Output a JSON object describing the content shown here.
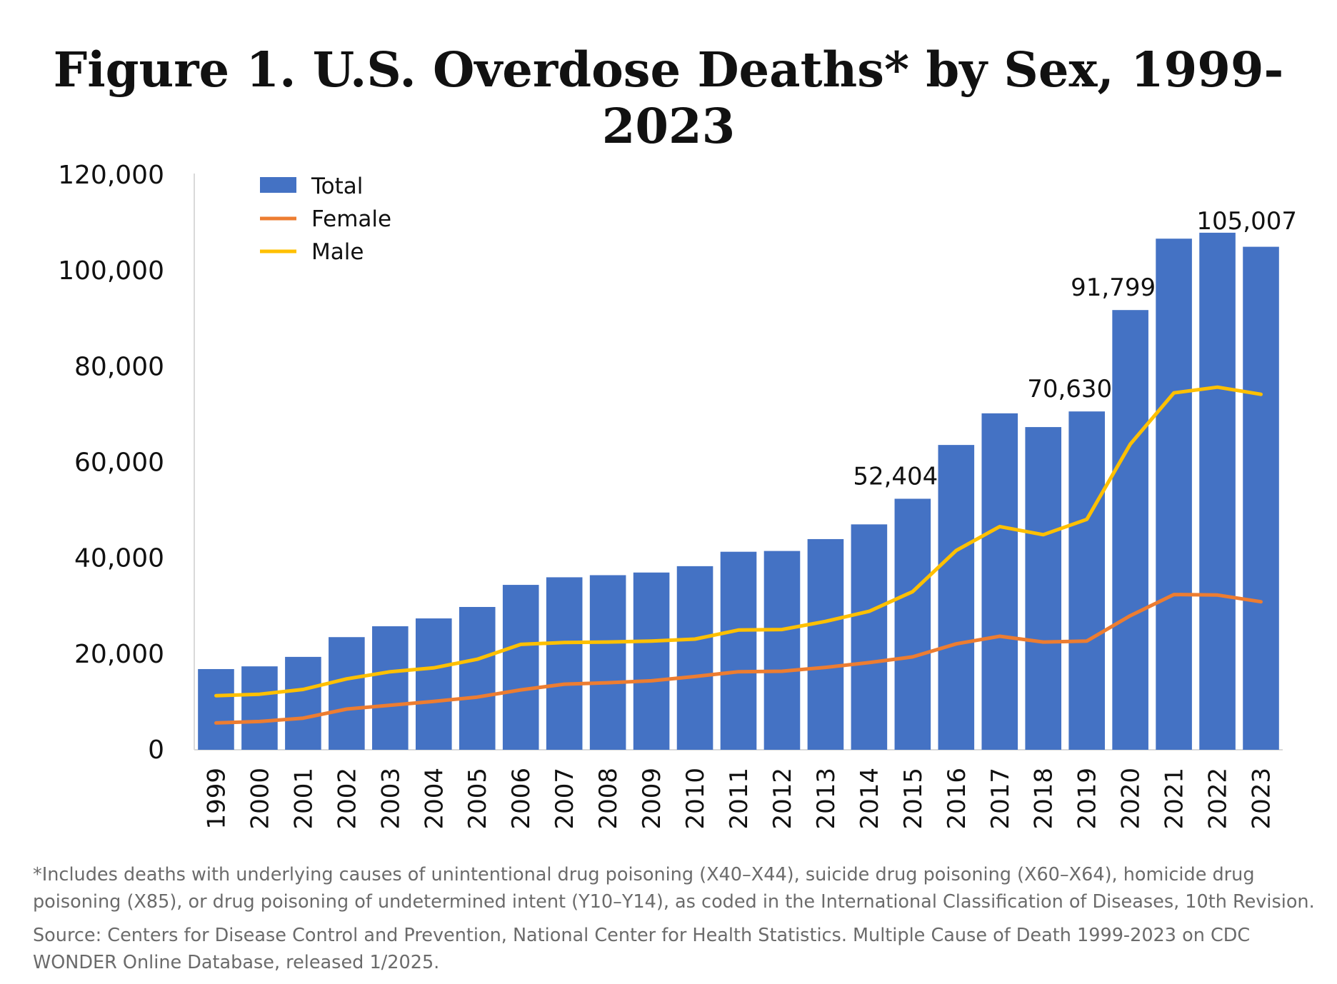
{
  "chart_data": {
    "type": "bar",
    "title": "Figure 1. U.S. Overdose Deaths* by Sex, 1999-2023",
    "categories": [
      "1999",
      "2000",
      "2001",
      "2002",
      "2003",
      "2004",
      "2005",
      "2006",
      "2007",
      "2008",
      "2009",
      "2010",
      "2011",
      "2012",
      "2013",
      "2014",
      "2015",
      "2016",
      "2017",
      "2018",
      "2019",
      "2020",
      "2021",
      "2022",
      "2023"
    ],
    "series": [
      {
        "name": "Total",
        "kind": "bar",
        "color": "#4472c4",
        "values": [
          16849,
          17415,
          19394,
          23518,
          25785,
          27424,
          29813,
          34425,
          36010,
          36450,
          37004,
          38329,
          41340,
          41502,
          43982,
          47055,
          52404,
          63632,
          70237,
          67367,
          70630,
          91799,
          106699,
          107941,
          105007
        ]
      },
      {
        "name": "Female",
        "kind": "line",
        "color": "#ed7d31",
        "values": [
          5600,
          5900,
          6600,
          8500,
          9300,
          10100,
          11000,
          12500,
          13700,
          14000,
          14400,
          15300,
          16300,
          16400,
          17200,
          18200,
          19400,
          22100,
          23700,
          22500,
          22700,
          28000,
          32400,
          32300,
          30900
        ]
      },
      {
        "name": "Male",
        "kind": "line",
        "color": "#ffc000",
        "values": [
          11300,
          11600,
          12600,
          14800,
          16300,
          17100,
          18900,
          22000,
          22400,
          22500,
          22700,
          23100,
          25000,
          25100,
          26800,
          28900,
          33000,
          41600,
          46600,
          44900,
          48100,
          63800,
          74500,
          75700,
          74200
        ]
      }
    ],
    "data_labels": [
      {
        "category": "2015",
        "text": "52,404"
      },
      {
        "category": "2019",
        "text": "70,630"
      },
      {
        "category": "2020",
        "text": "91,799"
      },
      {
        "category": "2023",
        "text": "105,007"
      }
    ],
    "y_ticks": [
      "0",
      "20,000",
      "40,000",
      "60,000",
      "80,000",
      "100,000",
      "120,000"
    ],
    "ylim": [
      0,
      120000
    ],
    "xlabel": "",
    "ylabel": "",
    "legend_position": "top-left",
    "grid": false
  },
  "footnotes": {
    "note_line1": "*Includes deaths with underlying causes of unintentional drug poisoning (X40–X44), suicide drug poisoning (X60–X64), homicide drug",
    "note_line2": "poisoning (X85), or drug poisoning of undetermined intent (Y10–Y14), as coded in the International Classification of Diseases, 10th Revision.",
    "source_line1": "Source: Centers for Disease Control and Prevention, National Center for Health Statistics. Multiple Cause of Death 1999-2023 on CDC",
    "source_line2": "WONDER Online Database, released 1/2025."
  }
}
